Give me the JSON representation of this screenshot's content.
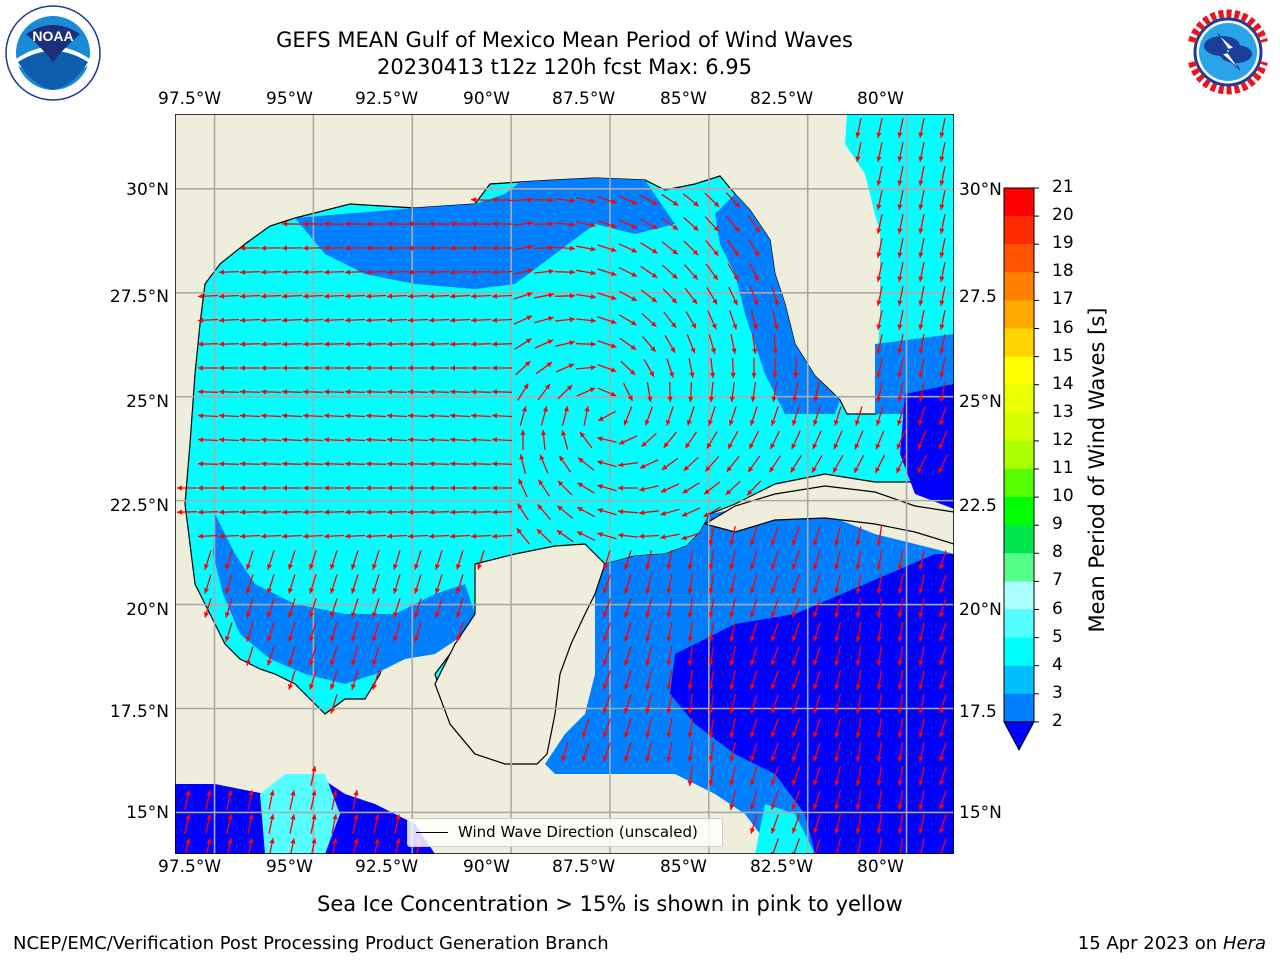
{
  "header": {
    "title_line1": "GEFS MEAN Gulf of Mexico Mean Period of Wind Waves",
    "title_line2": "20230413 t12z 120h fcst   Max: 6.95"
  },
  "logos": {
    "left": {
      "name": "NOAA",
      "text": "NOAA",
      "ring_text": "NATIONAL OCEANIC AND ATMOSPHERIC ADMINISTRATION · U.S. DEPARTMENT OF COMMERCE"
    },
    "right": {
      "name": "National Weather Service",
      "ring_text": "NATIONAL WEATHER SERVICE"
    }
  },
  "map": {
    "lon_range": [
      -98.5,
      -78.8
    ],
    "lat_range": [
      14.0,
      31.8
    ],
    "lon_ticks": [
      "97.5°W",
      "95°W",
      "92.5°W",
      "90°W",
      "87.5°W",
      "85°W",
      "82.5°W",
      "80°W"
    ],
    "lat_ticks_left": [
      "30°N",
      "27.5°N",
      "25°N",
      "22.5°N",
      "20°N",
      "17.5°N",
      "15°N"
    ],
    "lat_ticks_right": [
      "30°N",
      "27.5",
      "25°N",
      "22.5",
      "20°N",
      "17.5",
      "15°N"
    ],
    "land_color": "#efeddc",
    "grid": true,
    "legend_label": "Wind Wave Direction (unscaled)",
    "arrow_color": "#ff0000"
  },
  "colorbar": {
    "label": "Mean Period of Wind Waves [s]",
    "ticks": [
      "21",
      "20",
      "19",
      "18",
      "17",
      "16",
      "15",
      "14",
      "13",
      "12",
      "11",
      "10",
      "9",
      "8",
      "7",
      "6",
      "5",
      "4",
      "3",
      "2"
    ],
    "colors": [
      "#ff0000",
      "#ff2b00",
      "#ff5500",
      "#ff8000",
      "#ffaa00",
      "#ffd500",
      "#ffff00",
      "#eaff00",
      "#d5ff00",
      "#aaff00",
      "#55ff00",
      "#00ff00",
      "#00e64d",
      "#55ff88",
      "#aaffff",
      "#55ffff",
      "#00ffff",
      "#00bfff",
      "#0080ff",
      "#0000ff"
    ],
    "extend_color": "#0000ff"
  },
  "footer": {
    "sea_ice_note": "Sea Ice Concentration > 15% is shown in pink to yellow",
    "branch": "NCEP/EMC/Verification Post Processing Product Generation Branch",
    "date": "15 Apr 2023 on ",
    "machine": "Hera"
  }
}
